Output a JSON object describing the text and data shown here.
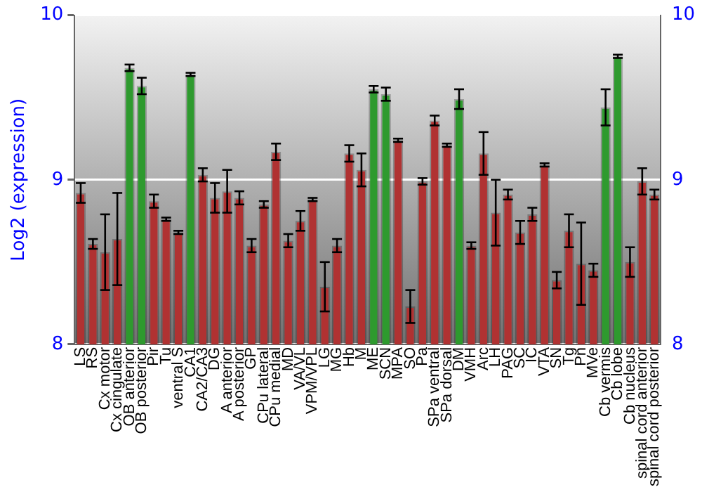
{
  "chart_data": {
    "type": "bar",
    "ylabel": "Log2 (expression)",
    "categories": [
      "LS",
      "RS",
      "Cx motor",
      "Cx cingulate",
      "OB anterior",
      "OB posterior",
      "Pir",
      "Tu",
      "ventral S",
      "CA1",
      "CA2/CA3",
      "DG",
      "A anterior",
      "A posterior",
      "GP",
      "CPu lateral",
      "CPu medial",
      "MD",
      "VA/VL",
      "VPM/VPL",
      "LG",
      "MG",
      "Hb",
      "M",
      "ME",
      "SCN",
      "MPA",
      "SO",
      "Pa",
      "SPa ventral",
      "SPa dorsal",
      "DM",
      "VMH",
      "Arc",
      "LH",
      "PAG",
      "SC",
      "IC",
      "VTA",
      "SN",
      "Tg",
      "Pn",
      "MVe",
      "Cb vermis",
      "Cb lobe",
      "Cb nucleus",
      "spinal cord anterior",
      "spinal cord posterior"
    ],
    "values": [
      8.92,
      8.61,
      8.56,
      8.64,
      9.68,
      9.57,
      8.87,
      8.76,
      8.68,
      9.64,
      9.03,
      8.89,
      8.93,
      8.89,
      8.6,
      8.85,
      9.17,
      8.63,
      8.75,
      8.88,
      8.35,
      8.6,
      9.16,
      9.06,
      9.55,
      9.52,
      9.24,
      8.23,
      8.99,
      9.36,
      9.21,
      9.49,
      8.6,
      9.16,
      8.8,
      8.91,
      8.68,
      8.79,
      9.09,
      8.39,
      8.69,
      8.49,
      8.45,
      9.44,
      9.75,
      8.5,
      8.99,
      8.91
    ],
    "errors": [
      0.06,
      0.03,
      0.23,
      0.28,
      0.02,
      0.05,
      0.04,
      0.01,
      0.01,
      0.01,
      0.04,
      0.09,
      0.13,
      0.04,
      0.04,
      0.02,
      0.05,
      0.04,
      0.06,
      0.01,
      0.15,
      0.04,
      0.05,
      0.1,
      0.02,
      0.04,
      0.01,
      0.1,
      0.02,
      0.03,
      0.01,
      0.06,
      0.02,
      0.13,
      0.2,
      0.03,
      0.07,
      0.04,
      0.01,
      0.05,
      0.1,
      0.25,
      0.04,
      0.11,
      0.01,
      0.09,
      0.08,
      0.03
    ],
    "colors": [
      "#b03232",
      "#b03232",
      "#b03232",
      "#b03232",
      "#2e9a2e",
      "#2e9a2e",
      "#b03232",
      "#b03232",
      "#b03232",
      "#2e9a2e",
      "#b03232",
      "#b03232",
      "#b03232",
      "#b03232",
      "#b03232",
      "#b03232",
      "#b03232",
      "#b03232",
      "#b03232",
      "#b03232",
      "#b03232",
      "#b03232",
      "#b03232",
      "#b03232",
      "#2e9a2e",
      "#2e9a2e",
      "#b03232",
      "#b03232",
      "#b03232",
      "#b03232",
      "#b03232",
      "#2e9a2e",
      "#b03232",
      "#b03232",
      "#b03232",
      "#b03232",
      "#b03232",
      "#b03232",
      "#b03232",
      "#b03232",
      "#b03232",
      "#b03232",
      "#b03232",
      "#2e9a2e",
      "#2e9a2e",
      "#b03232",
      "#b03232",
      "#b03232"
    ],
    "ylim": [
      8,
      10
    ],
    "yticks": [
      8,
      9,
      10
    ],
    "y2lim": [
      8,
      10
    ],
    "y2ticks": [
      8,
      9,
      10
    ],
    "grid": "y",
    "legend": false
  }
}
